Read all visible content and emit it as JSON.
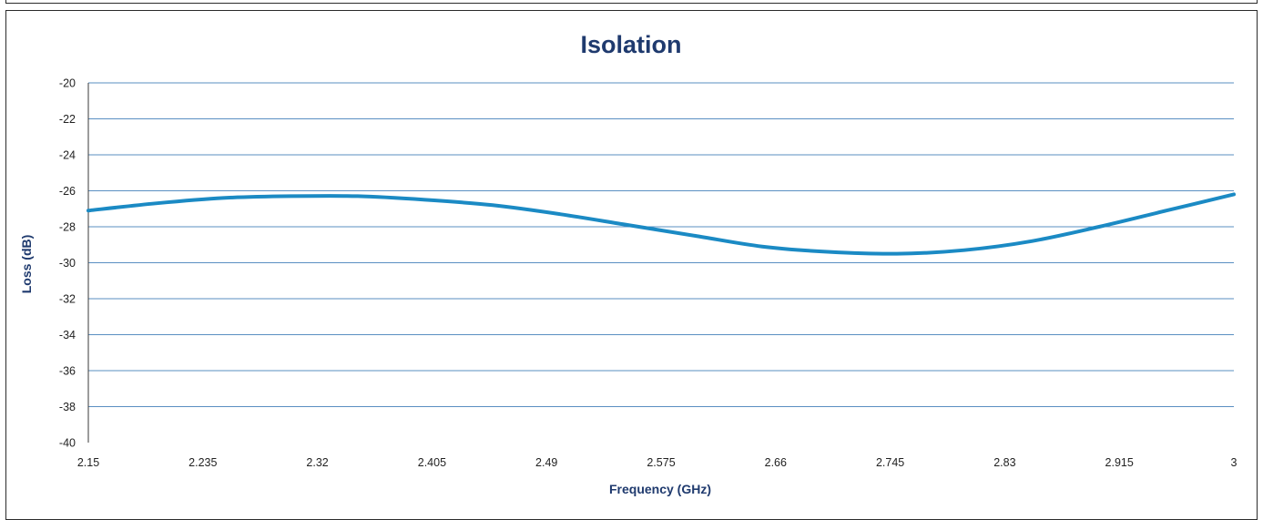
{
  "colors": {
    "title": "#1f3a6e",
    "axis_title": "#1f3a6e",
    "series": "#1b8ac4",
    "grid": "#5a8fc2",
    "axis": "#3a3a3a"
  },
  "chart_data": {
    "type": "line",
    "title": "Isolation",
    "xlabel": "Frequency (GHz)",
    "ylabel": "Loss (dB)",
    "xlim": [
      2.15,
      3
    ],
    "ylim": [
      -40,
      -20
    ],
    "x_ticks": [
      "2.15",
      "2.235",
      "2.32",
      "2.405",
      "2.49",
      "2.575",
      "2.66",
      "2.745",
      "2.83",
      "2.915",
      "3"
    ],
    "y_ticks": [
      "-20",
      "-22",
      "-24",
      "-26",
      "-28",
      "-30",
      "-32",
      "-34",
      "-36",
      "-38",
      "-40"
    ],
    "grid": true,
    "legend": false,
    "series": [
      {
        "x": [
          2.15,
          2.2,
          2.25,
          2.3,
          2.35,
          2.4,
          2.45,
          2.5,
          2.55,
          2.6,
          2.65,
          2.7,
          2.75,
          2.8,
          2.85,
          2.9,
          2.95,
          3.0
        ],
        "values": [
          -27.1,
          -26.7,
          -26.4,
          -26.3,
          -26.3,
          -26.5,
          -26.8,
          -27.3,
          -27.9,
          -28.5,
          -29.1,
          -29.4,
          -29.5,
          -29.3,
          -28.8,
          -28.0,
          -27.1,
          -26.2
        ]
      }
    ]
  }
}
